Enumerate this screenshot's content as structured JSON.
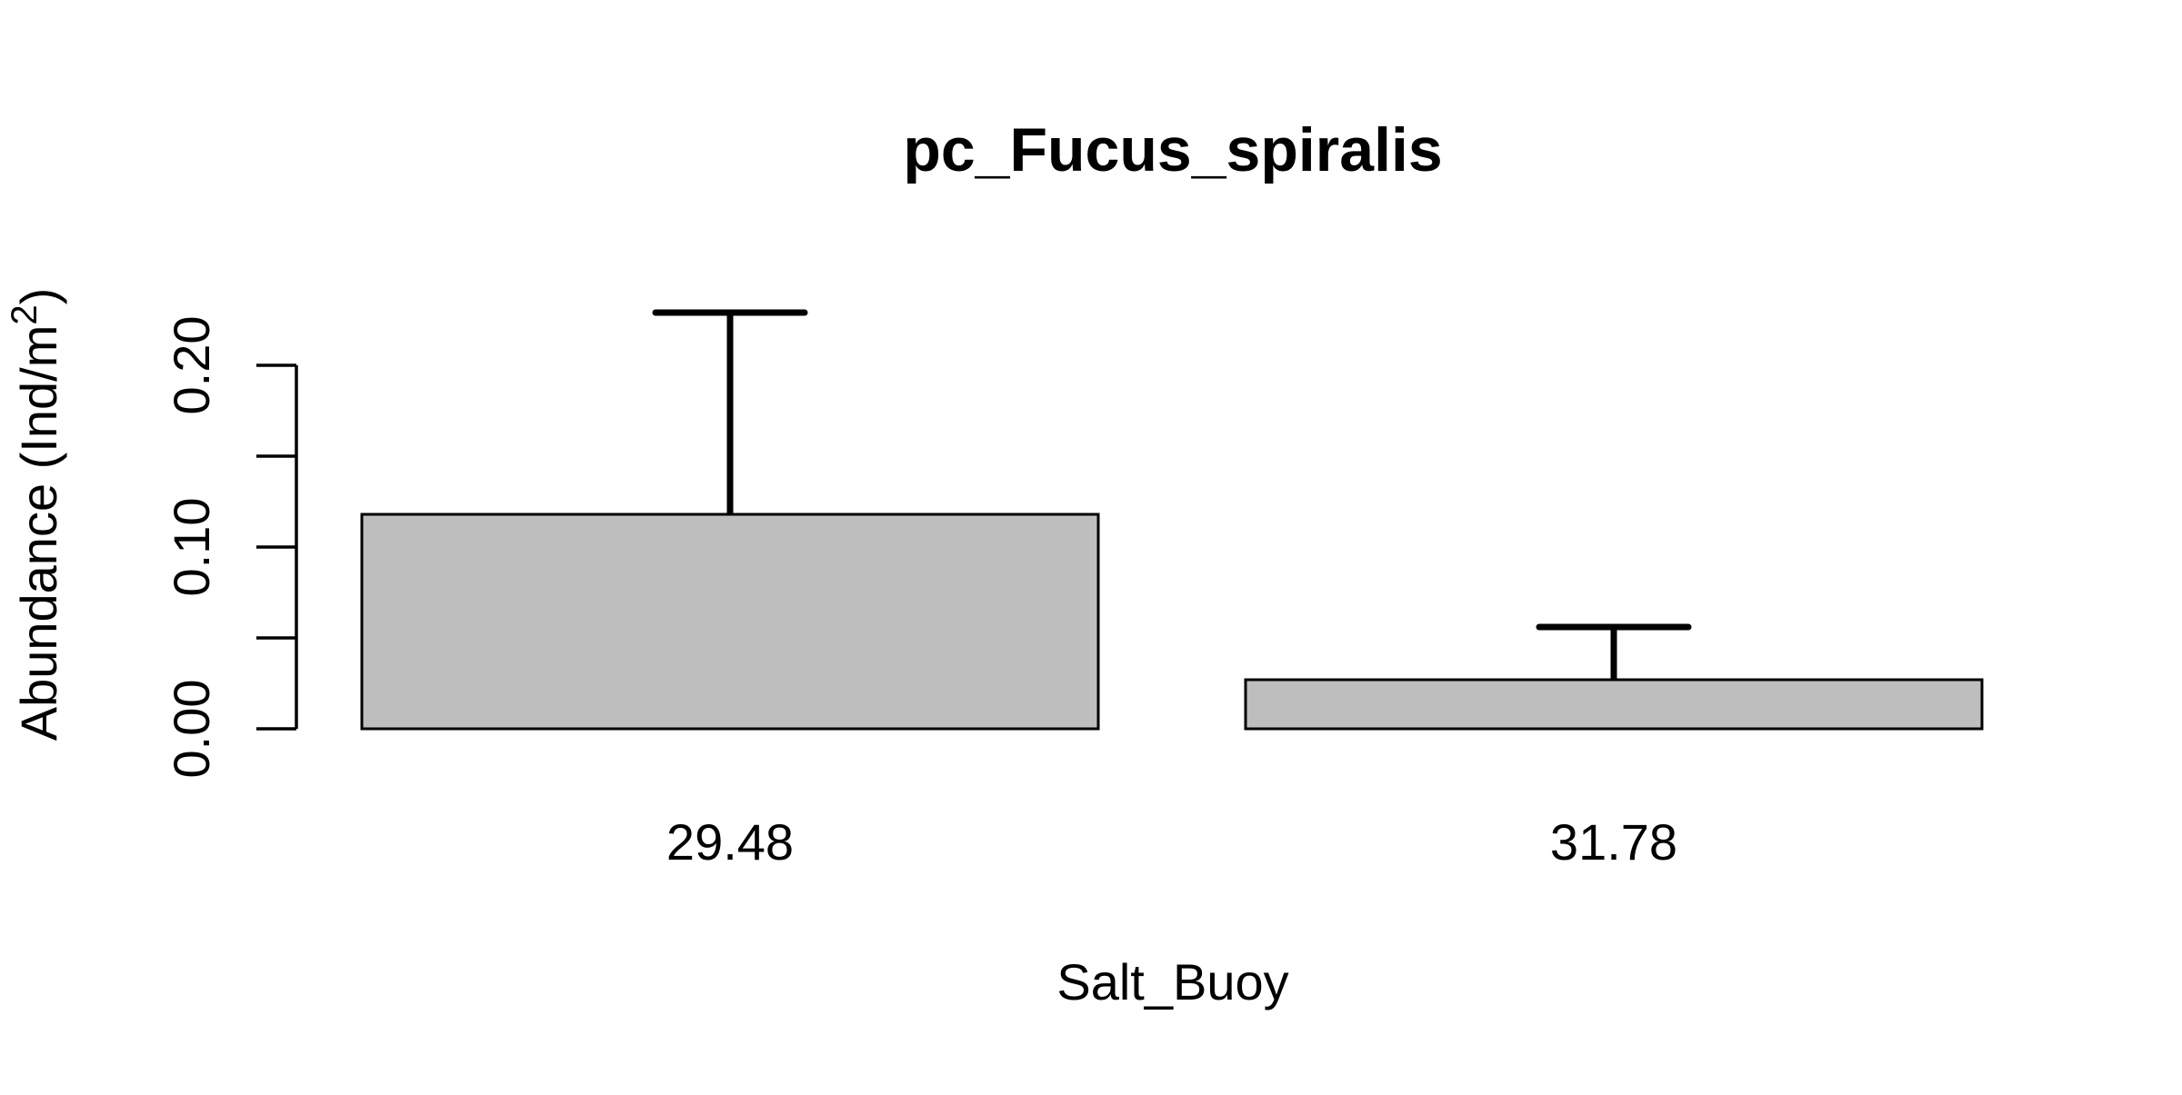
{
  "chart_data": {
    "type": "bar",
    "title": "pc_Fucus_spiralis",
    "xlabel": "Salt_Buoy",
    "ylabel": "Abundance (Ind/m",
    "ylabel_superscript": "2",
    "ylabel_suffix": ")",
    "categories": [
      "29.48",
      "31.78"
    ],
    "values": [
      0.118,
      0.027
    ],
    "error_upper": [
      0.229,
      0.056
    ],
    "ylim": [
      0,
      0.2
    ],
    "y_ticks": [
      0.0,
      0.05,
      0.1,
      0.15,
      0.2
    ],
    "y_tick_labels": [
      "0.00",
      "",
      "0.10",
      "",
      "0.20"
    ],
    "grid": false,
    "legend": "none",
    "colors": {
      "bar_fill": "#bebebe",
      "bar_stroke": "#000000",
      "error_bar": "#000000"
    }
  }
}
